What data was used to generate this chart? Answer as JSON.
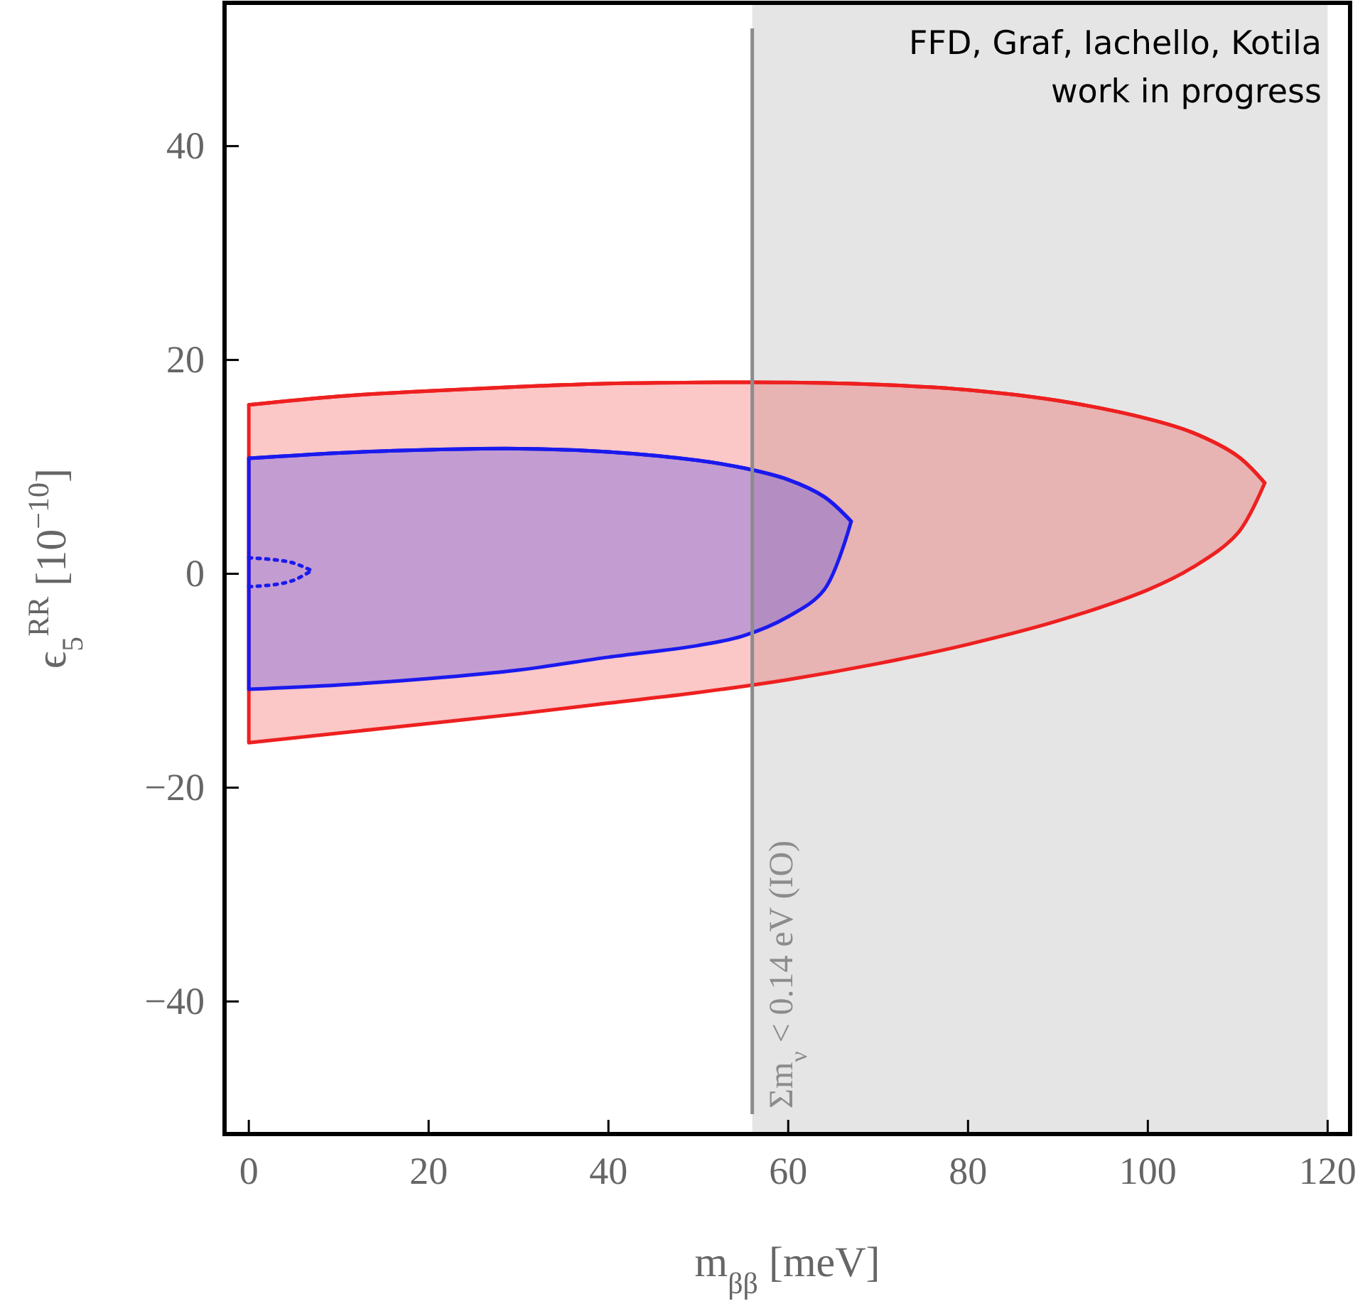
{
  "chart_data": {
    "type": "line",
    "xlabel": "m$_{ββ}$ [meV]",
    "ylabel": "ϵ$_{5}$$^{RR}$ [10$^{−10}$]",
    "xlim": [
      -2.7,
      122.5
    ],
    "ylim": [
      -52.4,
      53.4
    ],
    "xticks": [
      0,
      20,
      40,
      60,
      80,
      100,
      120
    ],
    "yticks": [
      {
        "value": -40,
        "label": "−40"
      },
      {
        "value": -20,
        "label": "−20"
      },
      0,
      20,
      40
    ],
    "line_style": "solid",
    "series": [
      {
        "color": "#ee2020",
        "x": [
          0,
          10,
          20,
          30,
          40,
          50,
          60,
          70,
          80,
          90,
          100,
          105,
          110,
          113
        ],
        "values": [
          15.8,
          16.6,
          17.1,
          17.5,
          17.8,
          17.9,
          17.9,
          17.7,
          17.2,
          16.2,
          14.5,
          13.2,
          11.0,
          8.5
        ],
        "upper": [
          15.8,
          16.6,
          17.1,
          17.5,
          17.8,
          17.9,
          17.9,
          17.7,
          17.2,
          16.2,
          14.5,
          13.2,
          11.0,
          8.5
        ],
        "lower": [
          -15.8,
          -14.9,
          -14.0,
          -13.1,
          -12.1,
          -11.1,
          -9.9,
          -8.4,
          -6.6,
          -4.4,
          -1.5,
          0.6,
          3.8,
          8.5
        ]
      },
      {
        "color": "#1a1aee",
        "x": [
          0,
          10,
          20,
          30,
          40,
          50,
          55,
          60,
          64,
          67
        ],
        "values": [
          10.8,
          11.3,
          11.6,
          11.7,
          11.4,
          10.6,
          9.9,
          8.8,
          7.2,
          4.9
        ],
        "upper": [
          10.8,
          11.3,
          11.6,
          11.7,
          11.4,
          10.6,
          9.9,
          8.8,
          7.2,
          4.9
        ],
        "lower": [
          -10.8,
          -10.4,
          -9.8,
          -9.0,
          -7.8,
          -6.7,
          -5.8,
          -4.0,
          -1.5,
          4.9
        ]
      },
      {
        "line_style": "dotted",
        "color": "#1a1aee",
        "x": [
          0,
          3,
          5,
          7
        ],
        "values": [
          1.5,
          1.3,
          1.0,
          0.3
        ]
      },
      {
        "line_style": "dotted",
        "color": "#1a1aee",
        "x": [
          0,
          3,
          5,
          7
        ],
        "values": [
          -1.2,
          -1.0,
          -0.6,
          0.3
        ]
      }
    ],
    "bands": [
      {
        "axis": "x",
        "from": 56,
        "to": 120,
        "color": "#e5e5e5"
      }
    ],
    "ref_lines": [
      {
        "axis": "x",
        "value": 56,
        "label": "Σm$_{ν}$ < 0.14 eV (IO)",
        "color": "#8c8c8c"
      }
    ],
    "annotations": [
      "FFD, Graf, Iachello, Kotila",
      "work in progress"
    ]
  }
}
